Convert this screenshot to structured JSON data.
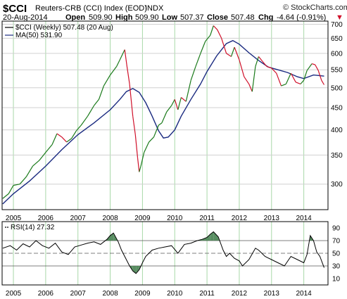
{
  "header": {
    "symbol": "$CCI",
    "name": "Reuters-CRB (CCI) Index (EOD)",
    "exchange": "INDX",
    "brand": "© StockCharts.com",
    "date": "20-Aug-2014",
    "open_label": "Open",
    "open": "509.90",
    "high_label": "High",
    "high": "509.90",
    "low_label": "Low",
    "low": "507.37",
    "close_label": "Close",
    "close": "507.48",
    "chg_label": "Chg",
    "chg": "-4.64 (-0.91%)",
    "chg_arrow": "▼"
  },
  "colors": {
    "up": "#1a7a1a",
    "down": "#d0102a",
    "ma": "#1a2a80",
    "rsi": "#000000",
    "rsi_fill": "#3c7a46",
    "grid_v": "#a8d8a8",
    "grid_h": "#d0d0d0"
  },
  "chart_data": [
    {
      "type": "line",
      "legend_placement": "top-left",
      "legend": [
        {
          "key": "price",
          "label": "$CCI (Weekly) 507.48 (20 Aug)"
        },
        {
          "key": "ma",
          "label": "MA(50) 531.90"
        }
      ],
      "x_ticks": [
        "2005",
        "2006",
        "2007",
        "2008",
        "2009",
        "2010",
        "2011",
        "2012",
        "2013",
        "2014"
      ],
      "x_range": [
        2004.65,
        2014.75
      ],
      "y_scale": "log",
      "y_ticks": [
        300,
        350,
        400,
        450,
        500,
        550,
        600,
        650,
        700
      ],
      "y_range": [
        262,
        712
      ],
      "grid": true,
      "price_series": {
        "x": [
          2004.67,
          2004.85,
          2005.0,
          2005.2,
          2005.4,
          2005.6,
          2005.8,
          2006.0,
          2006.2,
          2006.35,
          2006.5,
          2006.65,
          2006.8,
          2006.95,
          2007.1,
          2007.3,
          2007.5,
          2007.65,
          2007.8,
          2008.0,
          2008.2,
          2008.3,
          2008.45,
          2008.52,
          2008.6,
          2008.7,
          2008.78,
          2008.85,
          2008.9,
          2008.95,
          2009.05,
          2009.2,
          2009.35,
          2009.5,
          2009.6,
          2009.75,
          2009.9,
          2010.0,
          2010.1,
          2010.2,
          2010.35,
          2010.5,
          2010.65,
          2010.8,
          2010.95,
          2011.1,
          2011.2,
          2011.32,
          2011.45,
          2011.6,
          2011.75,
          2011.85,
          2012.0,
          2012.15,
          2012.3,
          2012.4,
          2012.5,
          2012.6,
          2012.72,
          2012.85,
          2013.0,
          2013.15,
          2013.3,
          2013.45,
          2013.6,
          2013.75,
          2013.9,
          2014.0,
          2014.1,
          2014.25,
          2014.35,
          2014.45,
          2014.55,
          2014.63
        ],
        "y": [
          278,
          285,
          298,
          300,
          312,
          330,
          340,
          355,
          370,
          392,
          385,
          375,
          382,
          398,
          410,
          430,
          455,
          470,
          505,
          535,
          560,
          580,
          612,
          560,
          510,
          430,
          390,
          345,
          320,
          330,
          355,
          375,
          385,
          410,
          415,
          440,
          455,
          470,
          445,
          475,
          465,
          520,
          560,
          600,
          640,
          660,
          695,
          680,
          650,
          600,
          590,
          620,
          580,
          530,
          510,
          490,
          560,
          590,
          575,
          560,
          555,
          540,
          505,
          510,
          540,
          515,
          510,
          520,
          548,
          568,
          565,
          548,
          520,
          508
        ]
      },
      "ma_series": {
        "x": [
          2004.67,
          2005.0,
          2005.5,
          2006.0,
          2006.5,
          2007.0,
          2007.5,
          2008.0,
          2008.3,
          2008.5,
          2008.7,
          2008.9,
          2009.1,
          2009.3,
          2009.5,
          2009.65,
          2009.8,
          2010.0,
          2010.2,
          2010.5,
          2010.8,
          2011.0,
          2011.3,
          2011.6,
          2011.8,
          2012.0,
          2012.3,
          2012.6,
          2012.9,
          2013.2,
          2013.5,
          2013.8,
          2014.0,
          2014.3,
          2014.63
        ],
        "y": [
          270,
          285,
          305,
          330,
          360,
          390,
          415,
          445,
          470,
          490,
          498,
          488,
          462,
          430,
          398,
          383,
          385,
          400,
          430,
          470,
          510,
          545,
          592,
          632,
          642,
          630,
          602,
          578,
          558,
          550,
          542,
          530,
          525,
          535,
          531.9
        ]
      }
    },
    {
      "type": "line",
      "legend_placement": "top-left",
      "legend": [
        {
          "key": "rsi",
          "label": "RSI(14) 27.32"
        }
      ],
      "x_ticks": [
        "2005",
        "2006",
        "2007",
        "2008",
        "2009",
        "2010",
        "2011",
        "2012",
        "2013",
        "2014"
      ],
      "x_range": [
        2004.65,
        2014.75
      ],
      "y_ticks": [
        10,
        30,
        50,
        70,
        90
      ],
      "y_range": [
        0,
        100
      ],
      "reference_lines": [
        30,
        50,
        70
      ],
      "grid": true,
      "rsi_series": {
        "x": [
          2004.67,
          2004.9,
          2005.1,
          2005.3,
          2005.5,
          2005.7,
          2005.9,
          2006.1,
          2006.3,
          2006.5,
          2006.7,
          2006.9,
          2007.1,
          2007.3,
          2007.5,
          2007.7,
          2007.9,
          2008.0,
          2008.1,
          2008.25,
          2008.35,
          2008.5,
          2008.6,
          2008.7,
          2008.8,
          2008.9,
          2009.0,
          2009.1,
          2009.3,
          2009.5,
          2009.7,
          2009.9,
          2010.1,
          2010.3,
          2010.5,
          2010.7,
          2010.85,
          2011.0,
          2011.1,
          2011.2,
          2011.35,
          2011.5,
          2011.6,
          2011.7,
          2011.85,
          2012.0,
          2012.1,
          2012.3,
          2012.5,
          2012.6,
          2012.8,
          2013.0,
          2013.2,
          2013.4,
          2013.6,
          2013.8,
          2014.0,
          2014.1,
          2014.2,
          2014.3,
          2014.4,
          2014.5,
          2014.63
        ],
        "y": [
          58,
          62,
          55,
          65,
          60,
          70,
          62,
          58,
          66,
          52,
          48,
          60,
          63,
          66,
          68,
          64,
          72,
          78,
          82,
          68,
          55,
          40,
          30,
          22,
          18,
          24,
          35,
          45,
          55,
          58,
          60,
          62,
          50,
          64,
          66,
          70,
          72,
          75,
          80,
          84,
          76,
          55,
          45,
          50,
          42,
          38,
          30,
          40,
          58,
          55,
          45,
          40,
          35,
          30,
          45,
          40,
          35,
          48,
          78,
          70,
          52,
          45,
          27.32
        ]
      }
    }
  ]
}
